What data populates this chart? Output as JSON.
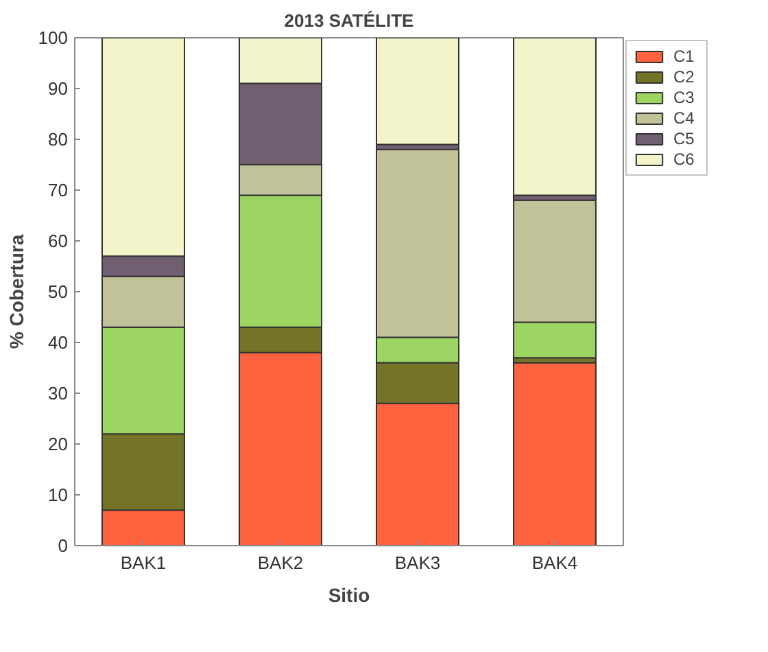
{
  "chart_data": {
    "type": "bar",
    "title": "2013 SATÉLITE",
    "xlabel": "Sitio",
    "ylabel": "% Cobertura",
    "categories": [
      "BAK1",
      "BAK2",
      "BAK3",
      "BAK4"
    ],
    "stacked": true,
    "series": [
      {
        "name": "C1",
        "color": "#ff623f",
        "values": [
          7,
          38,
          28,
          36
        ]
      },
      {
        "name": "C2",
        "color": "#747428",
        "values": [
          15,
          5,
          8,
          1
        ]
      },
      {
        "name": "C3",
        "color": "#9dd563",
        "values": [
          21,
          26,
          5,
          7
        ]
      },
      {
        "name": "C4",
        "color": "#c2c29a",
        "values": [
          10,
          6,
          37,
          24
        ]
      },
      {
        "name": "C5",
        "color": "#705f70",
        "values": [
          4,
          16,
          1,
          1
        ]
      },
      {
        "name": "C6",
        "color": "#f4f4cb",
        "values": [
          43,
          9,
          21,
          31
        ]
      }
    ],
    "ylim": [
      0,
      100
    ],
    "yticks": [
      0,
      10,
      20,
      30,
      40,
      50,
      60,
      70,
      80,
      90,
      100
    ],
    "grid": false,
    "legend": "top right"
  }
}
